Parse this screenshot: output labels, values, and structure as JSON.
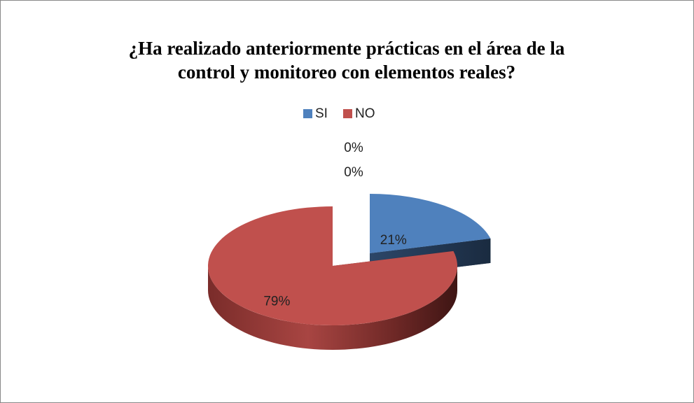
{
  "chart_data": {
    "type": "pie",
    "title": "¿Ha realizado anteriormente prácticas en el área de la control y monitoreo con elementos reales?",
    "categories": [
      "SI",
      "NO",
      null,
      null
    ],
    "values": [
      21,
      79,
      0,
      0
    ],
    "value_labels": [
      "21%",
      "79%",
      "0%",
      "0%"
    ],
    "colors": [
      "#4f81bd",
      "#c0504d",
      "#9bbb59",
      "#8064a2"
    ],
    "legend": "top",
    "three_d": true,
    "exploded": true
  }
}
